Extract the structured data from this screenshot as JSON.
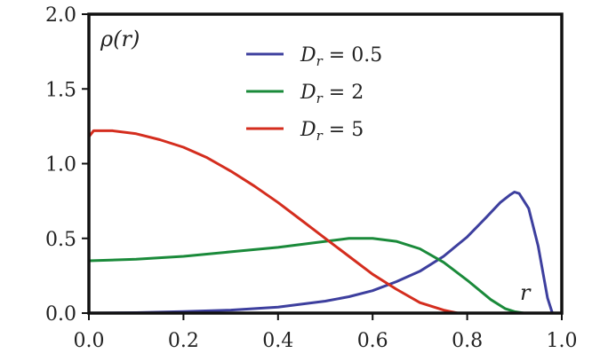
{
  "chart_data": {
    "type": "line",
    "title": "",
    "xlabel": "r",
    "ylabel": "ρ(r)",
    "xlim": [
      0.0,
      1.0
    ],
    "ylim": [
      0.0,
      2.0
    ],
    "x_ticks": [
      "0.0",
      "0.2",
      "0.4",
      "0.6",
      "0.8",
      "1.0"
    ],
    "y_ticks": [
      "0.0",
      "0.5",
      "1.0",
      "1.5",
      "2.0"
    ],
    "grid": false,
    "legend_position": "top-center",
    "series": [
      {
        "name": "D_r = 0.5",
        "label_main": "D",
        "label_sub": "r",
        "label_rest": " = 0.5",
        "color": "#3d3f9e",
        "x": [
          0.0,
          0.1,
          0.2,
          0.3,
          0.4,
          0.5,
          0.55,
          0.6,
          0.65,
          0.7,
          0.75,
          0.8,
          0.84,
          0.87,
          0.89,
          0.9,
          0.91,
          0.93,
          0.95,
          0.97,
          0.98
        ],
        "y": [
          0.0,
          0.003,
          0.01,
          0.02,
          0.04,
          0.08,
          0.11,
          0.15,
          0.21,
          0.28,
          0.38,
          0.51,
          0.64,
          0.74,
          0.79,
          0.81,
          0.8,
          0.7,
          0.45,
          0.1,
          0.0
        ]
      },
      {
        "name": "D_r = 2",
        "label_main": "D",
        "label_sub": "r",
        "label_rest": " = 2",
        "color": "#1a8a3a",
        "x": [
          0.0,
          0.1,
          0.2,
          0.3,
          0.4,
          0.5,
          0.55,
          0.6,
          0.65,
          0.7,
          0.75,
          0.8,
          0.85,
          0.88,
          0.9,
          0.92,
          0.94
        ],
        "y": [
          0.35,
          0.36,
          0.38,
          0.41,
          0.44,
          0.48,
          0.5,
          0.5,
          0.48,
          0.43,
          0.34,
          0.22,
          0.09,
          0.03,
          0.01,
          0.0,
          0.0
        ]
      },
      {
        "name": "D_r = 5",
        "label_main": "D",
        "label_sub": "r",
        "label_rest": " = 5",
        "color": "#d42d1e",
        "x": [
          0.0,
          0.01,
          0.05,
          0.1,
          0.15,
          0.2,
          0.25,
          0.3,
          0.35,
          0.4,
          0.45,
          0.5,
          0.55,
          0.6,
          0.65,
          0.7,
          0.75,
          0.78,
          0.8
        ],
        "y": [
          1.18,
          1.22,
          1.22,
          1.2,
          1.16,
          1.11,
          1.04,
          0.95,
          0.85,
          0.74,
          0.62,
          0.5,
          0.38,
          0.26,
          0.16,
          0.07,
          0.02,
          0.0,
          0.0
        ]
      }
    ]
  }
}
